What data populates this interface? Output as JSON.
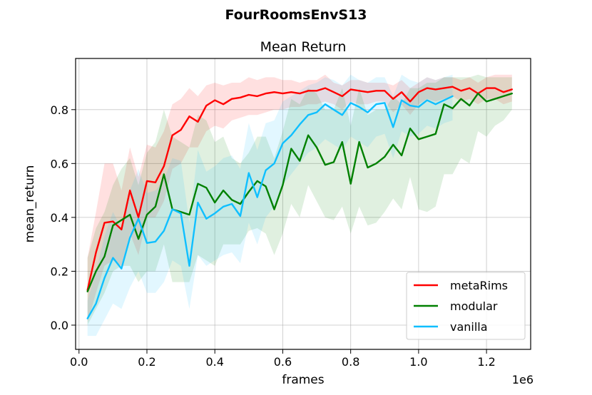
{
  "figure": {
    "suptitle": "FourRoomsEnvS13"
  },
  "chart_data": {
    "type": "line",
    "title": "Mean Return",
    "xlabel": "frames",
    "ylabel": "mean_return",
    "x_scale_label": "1e6",
    "xlim": [
      -0.01,
      1.33
    ],
    "ylim": [
      -0.09,
      0.99
    ],
    "xticks": [
      0.0,
      0.2,
      0.4,
      0.6,
      0.8,
      1.0,
      1.2
    ],
    "xtick_labels": [
      "0.0",
      "0.2",
      "0.4",
      "0.6",
      "0.8",
      "1.0",
      "1.2"
    ],
    "yticks": [
      0.0,
      0.2,
      0.4,
      0.6,
      0.8
    ],
    "ytick_labels": [
      "0.0",
      "0.2",
      "0.4",
      "0.6",
      "0.8"
    ],
    "grid": true,
    "legend_position": "lower-right",
    "series": [
      {
        "name": "metaRims",
        "color": "#ff0000",
        "x": [
          0.025,
          0.05,
          0.075,
          0.1,
          0.125,
          0.15,
          0.175,
          0.2,
          0.225,
          0.25,
          0.275,
          0.3,
          0.325,
          0.35,
          0.375,
          0.4,
          0.425,
          0.45,
          0.475,
          0.5,
          0.525,
          0.55,
          0.575,
          0.6,
          0.625,
          0.65,
          0.675,
          0.7,
          0.725,
          0.75,
          0.775,
          0.8,
          0.825,
          0.85,
          0.875,
          0.9,
          0.925,
          0.95,
          0.975,
          1.0,
          1.025,
          1.05,
          1.075,
          1.1,
          1.125,
          1.15,
          1.175,
          1.2,
          1.225,
          1.25,
          1.275
        ],
        "y": [
          0.13,
          0.27,
          0.38,
          0.385,
          0.355,
          0.5,
          0.4,
          0.535,
          0.53,
          0.59,
          0.705,
          0.725,
          0.775,
          0.755,
          0.815,
          0.835,
          0.82,
          0.84,
          0.845,
          0.855,
          0.85,
          0.86,
          0.865,
          0.86,
          0.865,
          0.86,
          0.87,
          0.87,
          0.88,
          0.865,
          0.85,
          0.875,
          0.87,
          0.865,
          0.87,
          0.87,
          0.84,
          0.865,
          0.83,
          0.865,
          0.88,
          0.875,
          0.88,
          0.885,
          0.87,
          0.88,
          0.86,
          0.88,
          0.88,
          0.865,
          0.875
        ],
        "band_low": [
          0.01,
          0.12,
          0.22,
          0.24,
          0.22,
          0.34,
          0.26,
          0.4,
          0.4,
          0.46,
          0.58,
          0.6,
          0.66,
          0.66,
          0.72,
          0.74,
          0.73,
          0.76,
          0.77,
          0.78,
          0.78,
          0.79,
          0.8,
          0.8,
          0.81,
          0.81,
          0.82,
          0.82,
          0.83,
          0.82,
          0.8,
          0.83,
          0.82,
          0.82,
          0.83,
          0.83,
          0.79,
          0.82,
          0.78,
          0.82,
          0.84,
          0.83,
          0.84,
          0.85,
          0.83,
          0.84,
          0.82,
          0.84,
          0.84,
          0.82,
          0.83
        ],
        "band_high": [
          0.25,
          0.42,
          0.6,
          0.6,
          0.5,
          0.66,
          0.55,
          0.67,
          0.66,
          0.72,
          0.82,
          0.84,
          0.88,
          0.85,
          0.89,
          0.9,
          0.89,
          0.9,
          0.9,
          0.92,
          0.91,
          0.92,
          0.92,
          0.91,
          0.91,
          0.9,
          0.91,
          0.91,
          0.93,
          0.9,
          0.89,
          0.91,
          0.91,
          0.9,
          0.9,
          0.9,
          0.89,
          0.91,
          0.88,
          0.9,
          0.92,
          0.91,
          0.92,
          0.92,
          0.91,
          0.92,
          0.9,
          0.92,
          0.93,
          0.93,
          0.93
        ]
      },
      {
        "name": "modular",
        "color": "#008000",
        "x": [
          0.025,
          0.05,
          0.075,
          0.1,
          0.125,
          0.15,
          0.175,
          0.2,
          0.225,
          0.25,
          0.275,
          0.3,
          0.325,
          0.35,
          0.375,
          0.4,
          0.425,
          0.45,
          0.475,
          0.5,
          0.525,
          0.55,
          0.575,
          0.6,
          0.625,
          0.65,
          0.675,
          0.7,
          0.725,
          0.75,
          0.775,
          0.8,
          0.825,
          0.85,
          0.875,
          0.9,
          0.925,
          0.95,
          0.975,
          1.0,
          1.025,
          1.05,
          1.075,
          1.1,
          1.125,
          1.15,
          1.175,
          1.2,
          1.225,
          1.25,
          1.275
        ],
        "y": [
          0.125,
          0.2,
          0.255,
          0.37,
          0.39,
          0.41,
          0.32,
          0.41,
          0.44,
          0.56,
          0.43,
          0.42,
          0.41,
          0.525,
          0.51,
          0.455,
          0.5,
          0.465,
          0.45,
          0.495,
          0.535,
          0.515,
          0.43,
          0.52,
          0.655,
          0.61,
          0.705,
          0.66,
          0.595,
          0.605,
          0.68,
          0.525,
          0.68,
          0.585,
          0.6,
          0.625,
          0.67,
          0.63,
          0.73,
          0.69,
          0.7,
          0.71,
          0.82,
          0.805,
          0.84,
          0.815,
          0.86,
          0.83,
          0.84,
          0.85,
          0.86
        ],
        "band_low": [
          0.0,
          0.06,
          0.12,
          0.2,
          0.22,
          0.22,
          0.16,
          0.2,
          0.2,
          0.3,
          0.16,
          0.16,
          0.16,
          0.26,
          0.24,
          0.22,
          0.3,
          0.3,
          0.3,
          0.35,
          0.36,
          0.34,
          0.26,
          0.34,
          0.45,
          0.4,
          0.52,
          0.46,
          0.4,
          0.39,
          0.44,
          0.34,
          0.44,
          0.37,
          0.38,
          0.42,
          0.47,
          0.43,
          0.55,
          0.43,
          0.42,
          0.44,
          0.56,
          0.56,
          0.62,
          0.6,
          0.72,
          0.7,
          0.74,
          0.76,
          0.8
        ],
        "band_high": [
          0.25,
          0.36,
          0.42,
          0.52,
          0.58,
          0.62,
          0.52,
          0.64,
          0.68,
          0.8,
          0.7,
          0.68,
          0.66,
          0.78,
          0.76,
          0.68,
          0.7,
          0.62,
          0.6,
          0.64,
          0.7,
          0.7,
          0.62,
          0.72,
          0.84,
          0.82,
          0.88,
          0.86,
          0.8,
          0.8,
          0.88,
          0.74,
          0.88,
          0.78,
          0.8,
          0.8,
          0.85,
          0.82,
          0.88,
          0.88,
          0.9,
          0.9,
          0.92,
          0.92,
          0.92,
          0.92,
          0.93,
          0.92,
          0.92,
          0.92,
          0.92
        ]
      },
      {
        "name": "vanilla",
        "color": "#0fbfff",
        "x": [
          0.025,
          0.05,
          0.075,
          0.1,
          0.125,
          0.15,
          0.175,
          0.2,
          0.225,
          0.25,
          0.275,
          0.3,
          0.325,
          0.35,
          0.375,
          0.4,
          0.425,
          0.45,
          0.475,
          0.5,
          0.525,
          0.55,
          0.575,
          0.6,
          0.625,
          0.65,
          0.675,
          0.7,
          0.725,
          0.75,
          0.775,
          0.8,
          0.825,
          0.85,
          0.875,
          0.9,
          0.925,
          0.95,
          0.975,
          1.0,
          1.025,
          1.05,
          1.075,
          1.1
        ],
        "y": [
          0.025,
          0.08,
          0.175,
          0.25,
          0.21,
          0.325,
          0.395,
          0.305,
          0.31,
          0.35,
          0.43,
          0.415,
          0.22,
          0.455,
          0.395,
          0.415,
          0.44,
          0.45,
          0.405,
          0.565,
          0.475,
          0.575,
          0.6,
          0.675,
          0.705,
          0.745,
          0.78,
          0.79,
          0.82,
          0.8,
          0.78,
          0.825,
          0.81,
          0.79,
          0.82,
          0.825,
          0.735,
          0.835,
          0.815,
          0.81,
          0.835,
          0.82,
          0.835,
          0.85
        ],
        "band_low": [
          -0.04,
          -0.04,
          0.02,
          0.08,
          0.06,
          0.14,
          0.2,
          0.12,
          0.12,
          0.16,
          0.24,
          0.22,
          0.06,
          0.26,
          0.22,
          0.24,
          0.26,
          0.27,
          0.23,
          0.38,
          0.3,
          0.4,
          0.44,
          0.52,
          0.56,
          0.6,
          0.64,
          0.66,
          0.69,
          0.67,
          0.65,
          0.7,
          0.68,
          0.66,
          0.7,
          0.71,
          0.62,
          0.72,
          0.7,
          0.71,
          0.74,
          0.73,
          0.75,
          0.76
        ],
        "band_high": [
          0.09,
          0.2,
          0.33,
          0.42,
          0.36,
          0.5,
          0.58,
          0.49,
          0.5,
          0.54,
          0.62,
          0.61,
          0.38,
          0.65,
          0.57,
          0.59,
          0.62,
          0.63,
          0.58,
          0.75,
          0.65,
          0.75,
          0.76,
          0.83,
          0.85,
          0.87,
          0.89,
          0.9,
          0.92,
          0.91,
          0.89,
          0.93,
          0.91,
          0.9,
          0.92,
          0.92,
          0.85,
          0.93,
          0.91,
          0.9,
          0.92,
          0.91,
          0.92,
          0.93
        ]
      }
    ]
  }
}
